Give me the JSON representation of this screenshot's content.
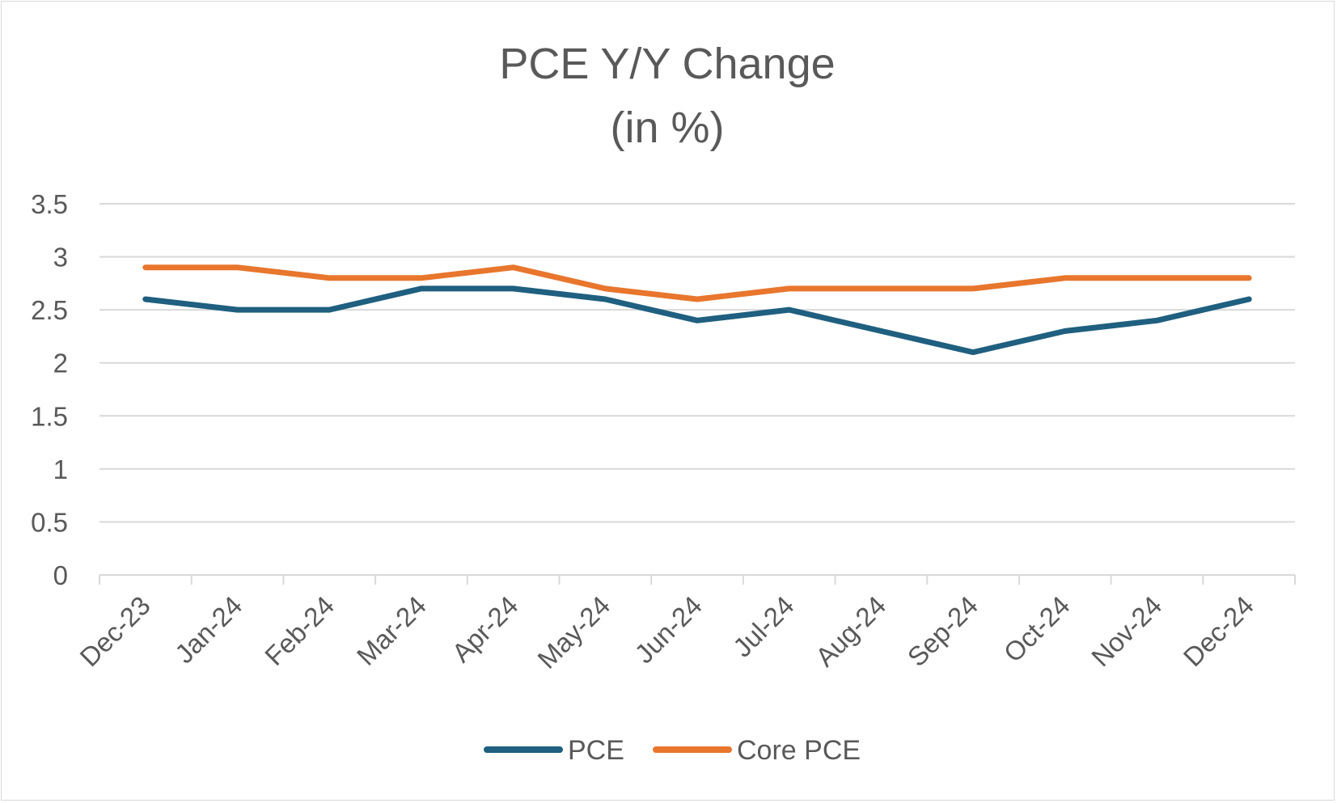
{
  "chart_data": {
    "type": "line",
    "title": "PCE Y/Y Change",
    "subtitle": "(in %)",
    "categories": [
      "Dec-23",
      "Jan-24",
      "Feb-24",
      "Mar-24",
      "Apr-24",
      "May-24",
      "Jun-24",
      "Jul-24",
      "Aug-24",
      "Sep-24",
      "Oct-24",
      "Nov-24",
      "Dec-24"
    ],
    "series": [
      {
        "name": "PCE",
        "color": "#1f5f7f",
        "values": [
          2.6,
          2.5,
          2.5,
          2.7,
          2.7,
          2.6,
          2.4,
          2.5,
          2.3,
          2.1,
          2.3,
          2.4,
          2.6
        ]
      },
      {
        "name": "Core PCE",
        "color": "#e8762d",
        "values": [
          2.9,
          2.9,
          2.8,
          2.8,
          2.9,
          2.7,
          2.6,
          2.7,
          2.7,
          2.7,
          2.8,
          2.8,
          2.8
        ]
      }
    ],
    "yticks": [
      "0",
      "0.5",
      "1",
      "1.5",
      "2",
      "2.5",
      "3",
      "3.5"
    ],
    "ylim": [
      0,
      3.5
    ],
    "grid": true,
    "legend_position": "bottom"
  }
}
